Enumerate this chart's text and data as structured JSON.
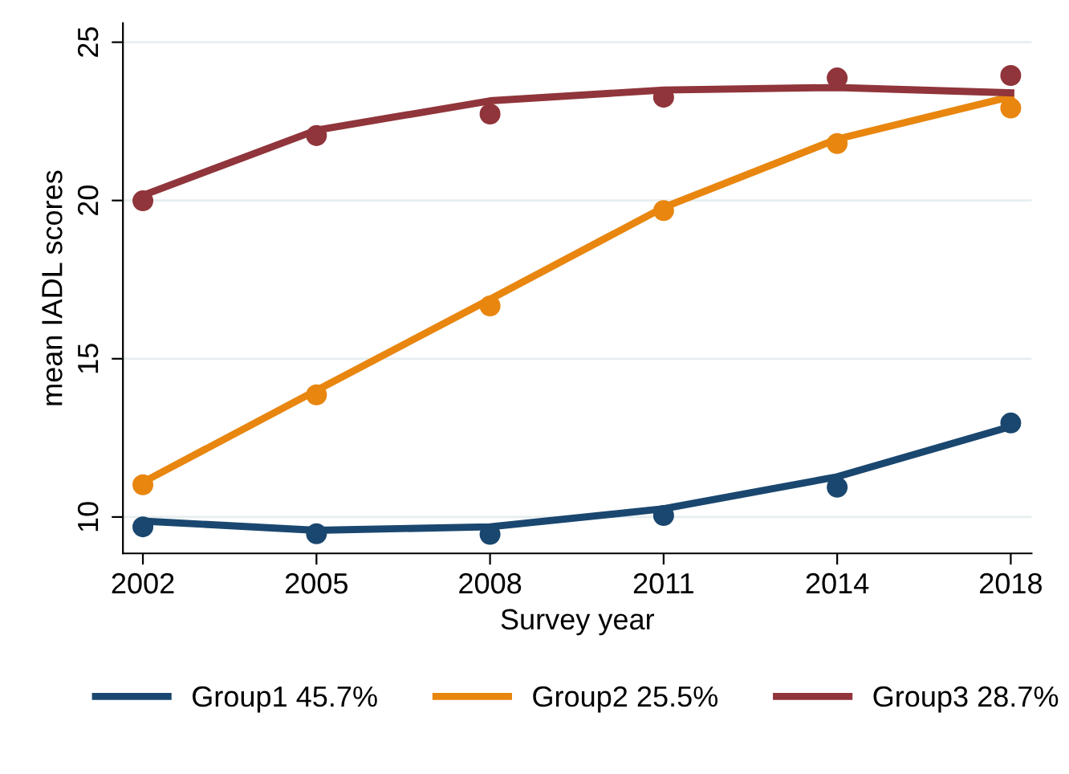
{
  "chart_data": {
    "type": "line",
    "xlabel": "Survey year",
    "ylabel": "mean IADL scores",
    "categories": [
      "2002",
      "2005",
      "2008",
      "2011",
      "2014",
      "2018"
    ],
    "ylim": [
      8.85,
      25.6
    ],
    "yticks": [
      10,
      15,
      20,
      25
    ],
    "grid": "y",
    "legend": "bottom",
    "line_style": "solid",
    "series": [
      {
        "name": "Group1 45.7%",
        "marker": "none",
        "color": "#1a476f",
        "values": [
          9.87,
          9.58,
          9.69,
          10.26,
          11.27,
          12.86
        ]
      },
      {
        "name": "Group2 25.5%",
        "marker": "none",
        "color": "#e8860f",
        "values": [
          11.1,
          14.0,
          16.88,
          19.78,
          21.94,
          23.28
        ]
      },
      {
        "name": "Group3 28.7%",
        "marker": "none",
        "color": "#90353b",
        "values": [
          20.16,
          22.22,
          23.15,
          23.49,
          23.57,
          23.4
        ]
      },
      {
        "type": "scatter",
        "marker": "circle",
        "color": "#1a476f",
        "values": [
          9.69,
          9.47,
          9.45,
          10.05,
          10.94,
          12.97
        ]
      },
      {
        "type": "scatter",
        "marker": "circle",
        "color": "#e8860f",
        "values": [
          11.02,
          13.86,
          16.67,
          19.68,
          21.8,
          22.92
        ]
      },
      {
        "type": "scatter",
        "marker": "circle",
        "color": "#90353b",
        "values": [
          19.99,
          22.05,
          22.73,
          23.26,
          23.87,
          23.95
        ]
      }
    ]
  }
}
